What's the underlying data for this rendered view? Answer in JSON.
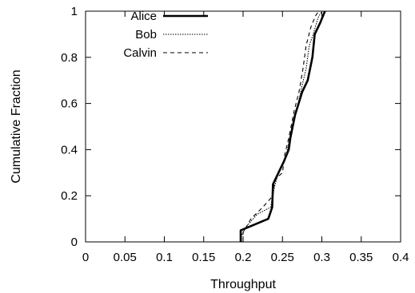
{
  "chart_data": {
    "type": "line",
    "title": "",
    "xlabel": "Throughput",
    "ylabel": "Cumulative Fraction",
    "xlim": [
      0,
      0.4
    ],
    "ylim": [
      0,
      1
    ],
    "x_ticks": [
      "0",
      "0.05",
      "0.1",
      "0.15",
      "0.2",
      "0.25",
      "0.3",
      "0.35",
      "0.4"
    ],
    "y_ticks": [
      "0",
      "0.2",
      "0.4",
      "0.6",
      "0.8",
      "1"
    ],
    "grid": false,
    "legend_position": "top-left",
    "series": [
      {
        "name": "Alice",
        "style": "solid",
        "color": "#000000",
        "points": [
          [
            0.197,
            0
          ],
          [
            0.197,
            0.05
          ],
          [
            0.232,
            0.1
          ],
          [
            0.237,
            0.15
          ],
          [
            0.238,
            0.25
          ],
          [
            0.245,
            0.3
          ],
          [
            0.252,
            0.35
          ],
          [
            0.258,
            0.4
          ],
          [
            0.26,
            0.45
          ],
          [
            0.266,
            0.55
          ],
          [
            0.275,
            0.65
          ],
          [
            0.282,
            0.7
          ],
          [
            0.288,
            0.8
          ],
          [
            0.291,
            0.9
          ],
          [
            0.298,
            0.95
          ],
          [
            0.304,
            1
          ]
        ]
      },
      {
        "name": "Bob",
        "style": "dotted",
        "color": "#000000",
        "points": [
          [
            0.198,
            0
          ],
          [
            0.198,
            0.03
          ],
          [
            0.205,
            0.07
          ],
          [
            0.218,
            0.12
          ],
          [
            0.235,
            0.15
          ],
          [
            0.24,
            0.24
          ],
          [
            0.245,
            0.3
          ],
          [
            0.255,
            0.38
          ],
          [
            0.262,
            0.5
          ],
          [
            0.27,
            0.6
          ],
          [
            0.275,
            0.68
          ],
          [
            0.28,
            0.75
          ],
          [
            0.284,
            0.85
          ],
          [
            0.289,
            0.9
          ],
          [
            0.295,
            0.97
          ],
          [
            0.3,
            1
          ]
        ]
      },
      {
        "name": "Calvin",
        "style": "dashed",
        "color": "#000000",
        "points": [
          [
            0.2,
            0
          ],
          [
            0.2,
            0.04
          ],
          [
            0.21,
            0.1
          ],
          [
            0.225,
            0.15
          ],
          [
            0.238,
            0.2
          ],
          [
            0.24,
            0.27
          ],
          [
            0.25,
            0.3
          ],
          [
            0.253,
            0.38
          ],
          [
            0.258,
            0.45
          ],
          [
            0.265,
            0.57
          ],
          [
            0.271,
            0.65
          ],
          [
            0.276,
            0.75
          ],
          [
            0.28,
            0.85
          ],
          [
            0.286,
            0.93
          ],
          [
            0.292,
            0.98
          ],
          [
            0.296,
            1
          ]
        ]
      }
    ]
  }
}
